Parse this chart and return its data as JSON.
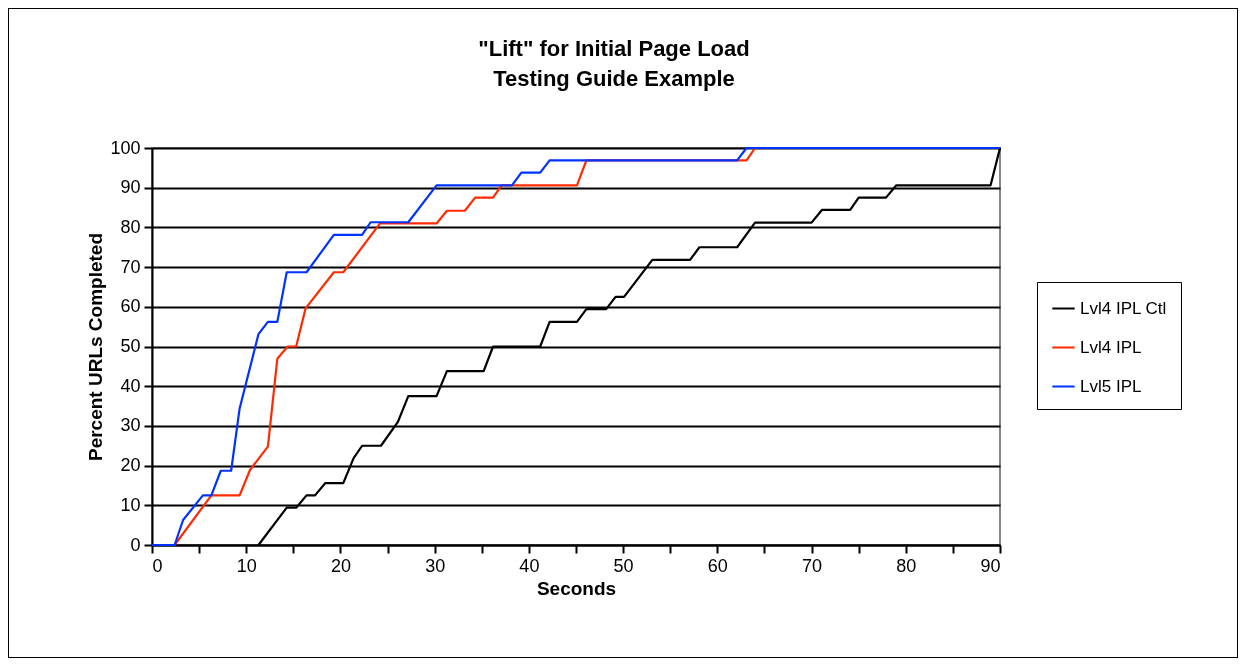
{
  "chart_data": {
    "type": "line",
    "title": "\"Lift\" for Initial Page Load",
    "subtitle": "Testing Guide Example",
    "xlabel": "Seconds",
    "ylabel": "Percent URLs Completed",
    "xlim": [
      0,
      90
    ],
    "ylim": [
      0,
      100
    ],
    "xticks": [
      0,
      {
        "value": 5,
        "label": null
      },
      10,
      {
        "value": 15,
        "label": null
      },
      20,
      {
        "value": 25,
        "label": null
      },
      30,
      {
        "value": 35,
        "label": null
      },
      40,
      {
        "value": 45,
        "label": null
      },
      50,
      {
        "value": 55,
        "label": null
      },
      60,
      {
        "value": 65,
        "label": null
      },
      70,
      {
        "value": 75,
        "label": null
      },
      80,
      {
        "value": 85,
        "label": null
      },
      90
    ],
    "yticks": [
      0,
      10,
      20,
      30,
      40,
      50,
      60,
      70,
      80,
      90,
      100
    ],
    "grid": "y",
    "legend": "right",
    "marker": "none",
    "line_style": "solid",
    "series": [
      {
        "name": "Lvl4 IPL Ctl",
        "color": "#000000",
        "x": [
          11.3,
          14.3,
          15.3,
          16.4,
          17.3,
          18.4,
          20.3,
          21.4,
          22.3,
          24.3,
          26.1,
          27.2,
          30.2,
          31.3,
          35.2,
          36.2,
          41.2,
          42.2,
          45.1,
          46.1,
          48.2,
          49.2,
          50.1,
          53.1,
          57.1,
          58.1,
          62.1,
          64,
          70,
          71.1,
          74.1,
          75,
          77.9,
          79,
          89,
          90
        ],
        "values": [
          0,
          9.4,
          9.4,
          12.5,
          12.5,
          15.6,
          15.6,
          21.9,
          25,
          25,
          31,
          37.5,
          37.5,
          43.8,
          43.8,
          50,
          50,
          56.2,
          56.2,
          59.4,
          59.4,
          62.5,
          62.5,
          71.8,
          71.8,
          75,
          75,
          81.2,
          81.2,
          84.4,
          84.4,
          87.5,
          87.5,
          90.6,
          90.6,
          100
        ]
      },
      {
        "name": "Lvl4 IPL",
        "color": "#ff2a00",
        "x": [
          0,
          2.4,
          6.3,
          9.3,
          10.4,
          12.3,
          13.3,
          14.4,
          15.3,
          16.3,
          19.3,
          20.3,
          24.2,
          30.2,
          31.3,
          33.2,
          34.3,
          36.2,
          37.1,
          45.1,
          46.1,
          63.1,
          64
        ],
        "values": [
          0,
          0,
          12.5,
          12.5,
          18.9,
          24.8,
          46.9,
          50,
          50,
          59.6,
          68.7,
          68.7,
          81,
          81,
          84.2,
          84.2,
          87.5,
          87.5,
          90.6,
          90.6,
          96.9,
          96.9,
          100
        ]
      },
      {
        "name": "Lvl5 IPL",
        "color": "#0033ff",
        "x": [
          0,
          2.4,
          3.3,
          5.4,
          6.3,
          7.3,
          8.4,
          9.3,
          11.3,
          12.3,
          13.3,
          14.3,
          16.4,
          19.3,
          22.3,
          23.2,
          27.2,
          30.2,
          38.2,
          39.2,
          41.2,
          42.2,
          62.1,
          63.1,
          90
        ],
        "values": [
          0,
          0,
          6.3,
          12.5,
          12.5,
          18.7,
          18.7,
          34.4,
          53.1,
          56.2,
          56.2,
          68.7,
          68.7,
          78.1,
          78.1,
          81.3,
          81.3,
          90.6,
          90.6,
          93.8,
          93.8,
          96.9,
          96.9,
          100,
          100
        ]
      }
    ]
  }
}
